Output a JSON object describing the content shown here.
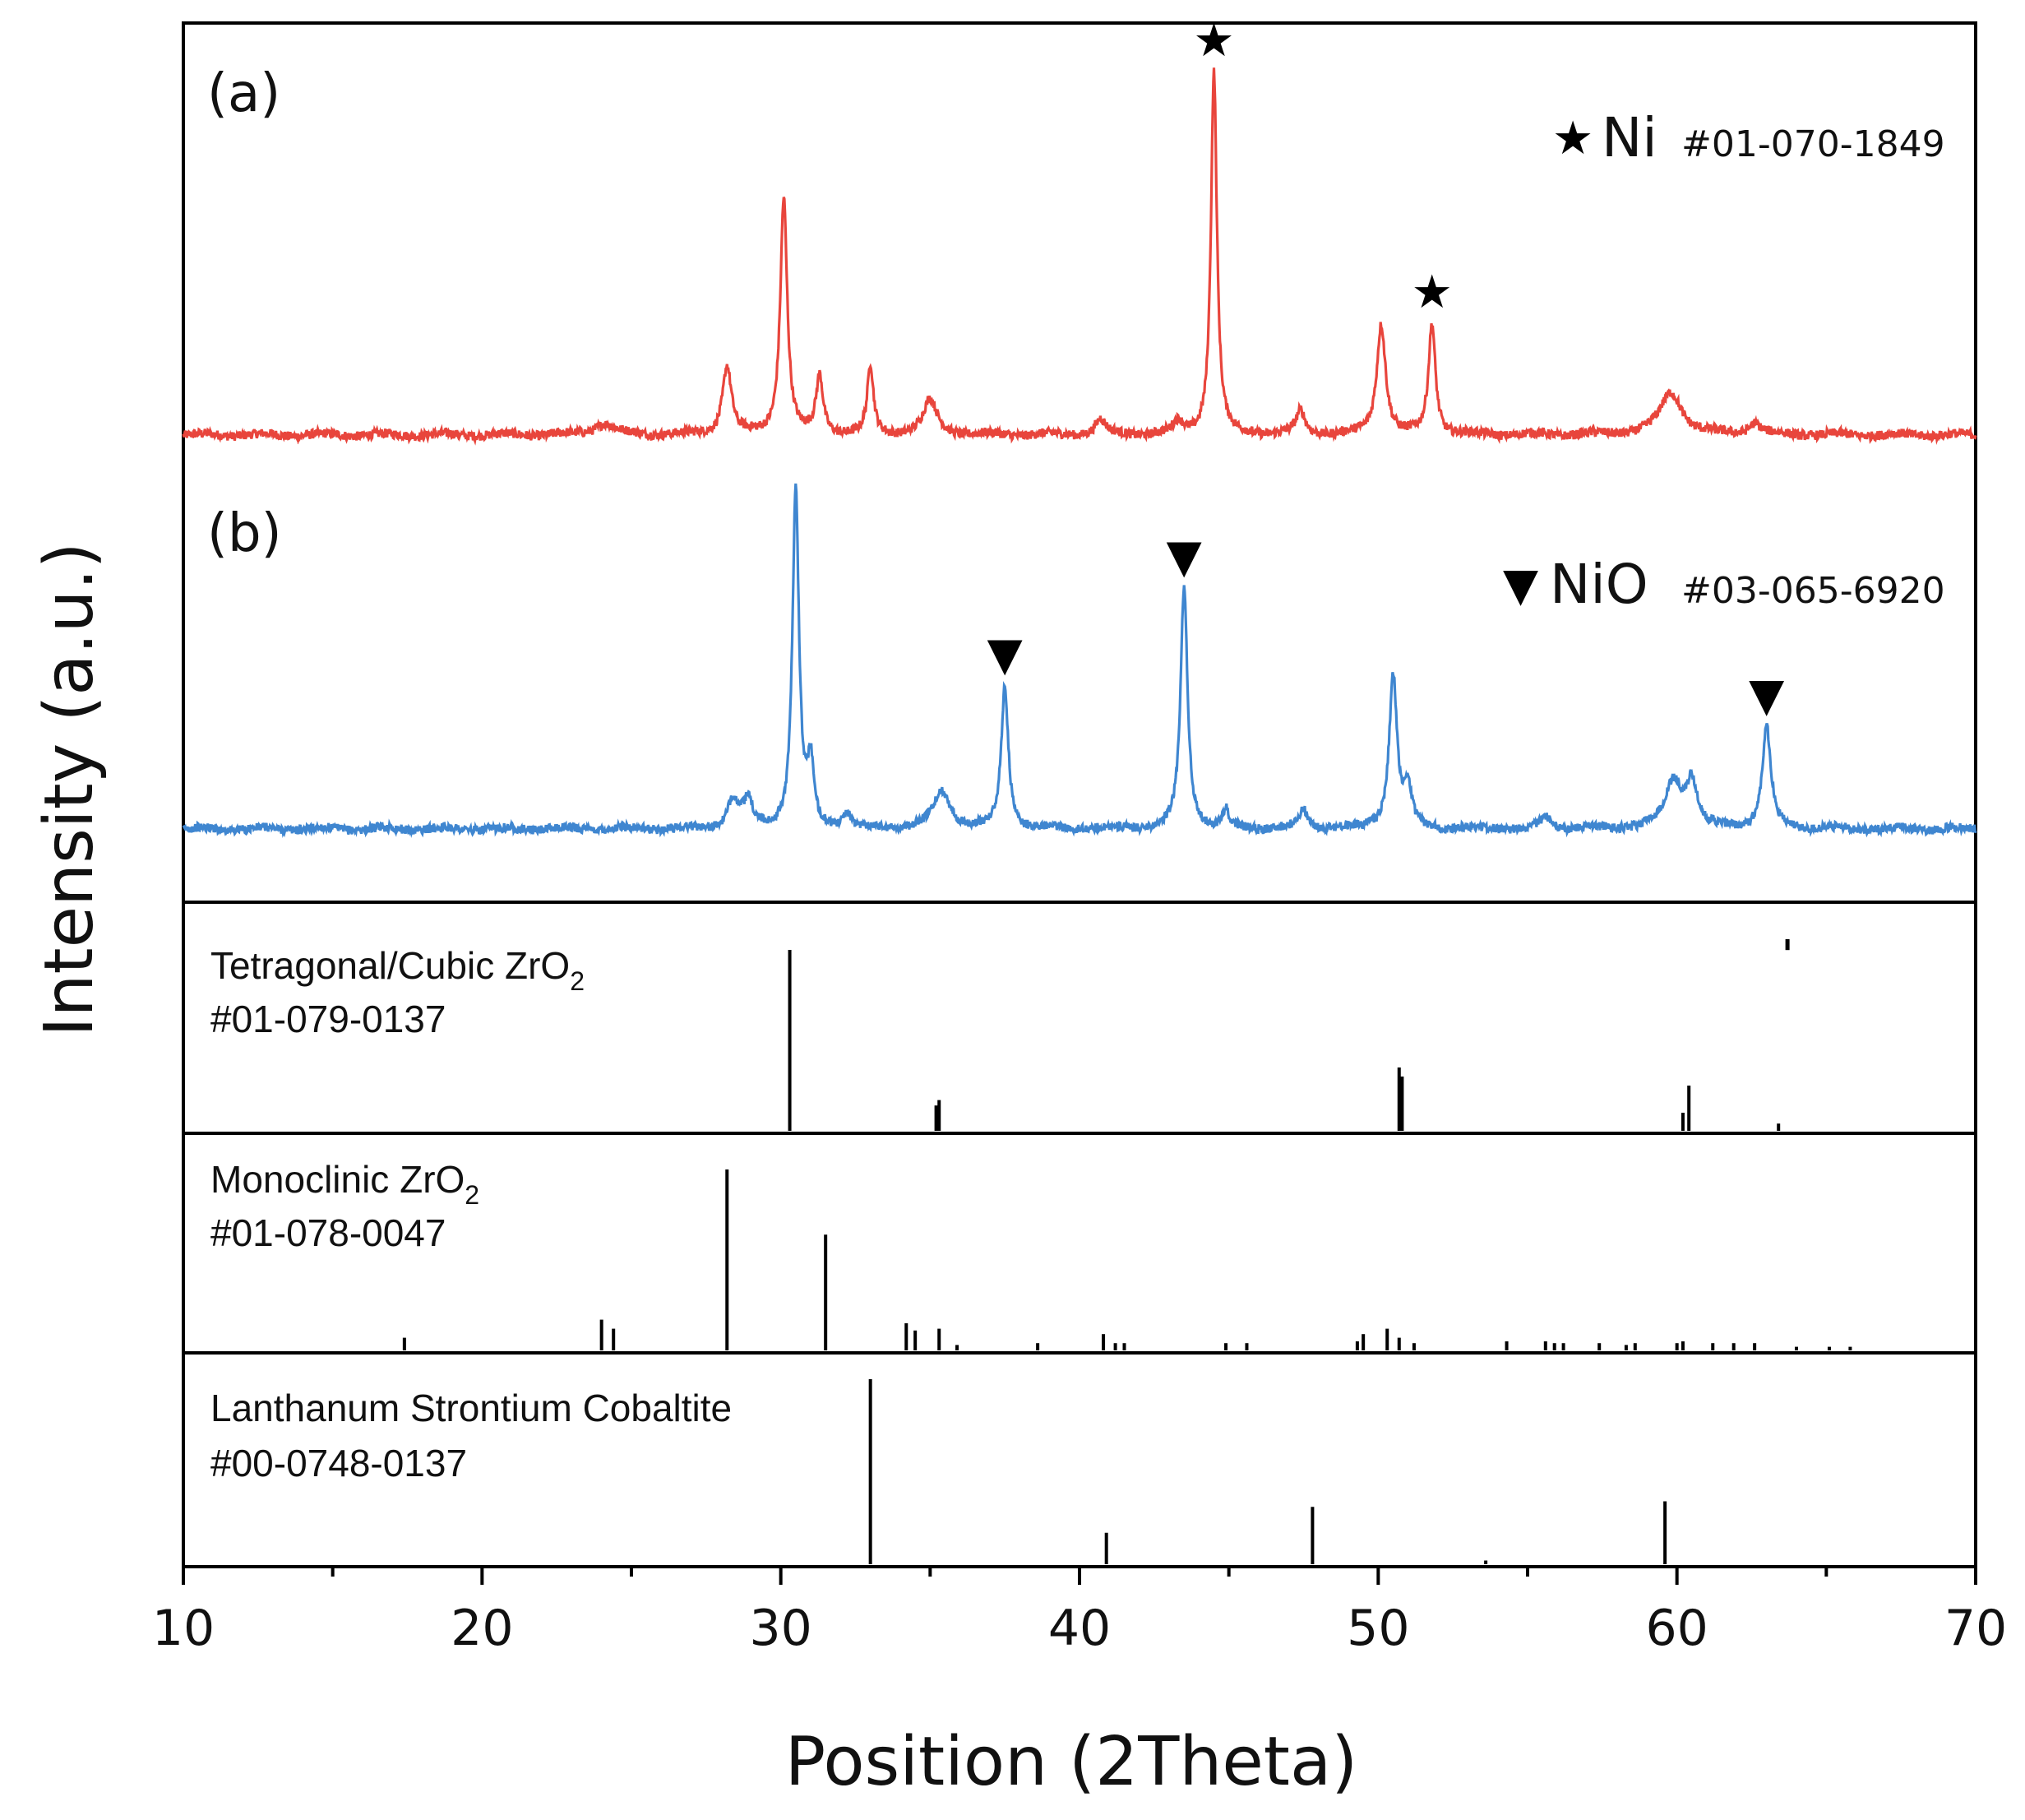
{
  "chart_data": {
    "type": "line",
    "xlabel": "Position (2Theta)",
    "ylabel": "Intensity (a.u.)",
    "xlim": [
      10,
      70
    ],
    "x_ticks": [
      10,
      20,
      30,
      40,
      50,
      60,
      70
    ],
    "x_tick_labels": [
      "10",
      "20",
      "30",
      "40",
      "50",
      "60",
      "70"
    ],
    "series": [
      {
        "name": "(a)",
        "color": "#e8453c",
        "baseline": 0.05,
        "noise": 0.012,
        "peaks": [
          {
            "x": 24.1,
            "h": 0.03,
            "w": 0.4
          },
          {
            "x": 28.2,
            "h": 0.18,
            "w": 0.18
          },
          {
            "x": 30.1,
            "h": 0.62,
            "w": 0.14
          },
          {
            "x": 31.3,
            "h": 0.15,
            "w": 0.14
          },
          {
            "x": 33.0,
            "h": 0.18,
            "w": 0.12
          },
          {
            "x": 35.0,
            "h": 0.09,
            "w": 0.28
          },
          {
            "x": 40.7,
            "h": 0.04,
            "w": 0.2
          },
          {
            "x": 43.3,
            "h": 0.03,
            "w": 0.2
          },
          {
            "x": 44.5,
            "h": 0.95,
            "w": 0.12
          },
          {
            "x": 47.4,
            "h": 0.06,
            "w": 0.18
          },
          {
            "x": 50.1,
            "h": 0.29,
            "w": 0.18
          },
          {
            "x": 51.8,
            "h": 0.29,
            "w": 0.14
          },
          {
            "x": 59.8,
            "h": 0.11,
            "w": 0.45
          },
          {
            "x": 62.6,
            "h": 0.03,
            "w": 0.25
          }
        ],
        "markers": [
          {
            "x": 44.5,
            "symbol": "★"
          },
          {
            "x": 51.8,
            "symbol": "★"
          }
        ],
        "label": "(a)",
        "legend": {
          "symbol": "★",
          "phase": "Ni",
          "card": "#01-070-1849"
        }
      },
      {
        "name": "(b)",
        "color": "#3f86d0",
        "baseline": 0.05,
        "noise": 0.012,
        "peaks": [
          {
            "x": 28.4,
            "h": 0.08,
            "w": 0.2
          },
          {
            "x": 28.9,
            "h": 0.07,
            "w": 0.2
          },
          {
            "x": 30.5,
            "h": 0.93,
            "w": 0.13
          },
          {
            "x": 31.0,
            "h": 0.17,
            "w": 0.12
          },
          {
            "x": 32.2,
            "h": 0.04,
            "w": 0.15
          },
          {
            "x": 35.4,
            "h": 0.1,
            "w": 0.35
          },
          {
            "x": 37.5,
            "h": 0.39,
            "w": 0.14
          },
          {
            "x": 43.5,
            "h": 0.66,
            "w": 0.14
          },
          {
            "x": 44.9,
            "h": 0.05,
            "w": 0.12
          },
          {
            "x": 47.5,
            "h": 0.05,
            "w": 0.18
          },
          {
            "x": 50.5,
            "h": 0.42,
            "w": 0.16
          },
          {
            "x": 51.0,
            "h": 0.1,
            "w": 0.15
          },
          {
            "x": 55.6,
            "h": 0.03,
            "w": 0.2
          },
          {
            "x": 59.9,
            "h": 0.13,
            "w": 0.35
          },
          {
            "x": 60.5,
            "h": 0.12,
            "w": 0.2
          },
          {
            "x": 63.0,
            "h": 0.28,
            "w": 0.17
          }
        ],
        "markers": [
          {
            "x": 37.5,
            "symbol": "▼"
          },
          {
            "x": 43.5,
            "symbol": "▼"
          },
          {
            "x": 63.0,
            "symbol": "▼"
          }
        ],
        "label": "(b)",
        "legend": {
          "symbol": "▼",
          "phase": "NiO",
          "card": "#03-065-6920"
        }
      }
    ],
    "reference_patterns": [
      {
        "name_main": "Tetragonal/Cubic ZrO",
        "name_sub": "2",
        "card": "#01-079-0137",
        "lines": [
          {
            "x": 30.3,
            "h": 1.0
          },
          {
            "x": 35.2,
            "h": 0.14
          },
          {
            "x": 35.3,
            "h": 0.17
          },
          {
            "x": 50.7,
            "h": 0.35
          },
          {
            "x": 50.8,
            "h": 0.3
          },
          {
            "x": 60.2,
            "h": 0.1
          },
          {
            "x": 60.4,
            "h": 0.25
          },
          {
            "x": 63.4,
            "h": 0.04
          },
          {
            "x": 63.7,
            "h": 0.06,
            "floating": true
          }
        ]
      },
      {
        "name_main": "Monoclinic ZrO",
        "name_sub": "2",
        "card": "#01-078-0047",
        "lines": [
          {
            "x": 17.4,
            "h": 0.07
          },
          {
            "x": 24.0,
            "h": 0.17
          },
          {
            "x": 24.4,
            "h": 0.12
          },
          {
            "x": 28.2,
            "h": 1.0
          },
          {
            "x": 31.5,
            "h": 0.64
          },
          {
            "x": 34.2,
            "h": 0.15
          },
          {
            "x": 34.5,
            "h": 0.11
          },
          {
            "x": 35.3,
            "h": 0.12
          },
          {
            "x": 35.9,
            "h": 0.03
          },
          {
            "x": 38.6,
            "h": 0.04
          },
          {
            "x": 40.8,
            "h": 0.09
          },
          {
            "x": 41.2,
            "h": 0.04
          },
          {
            "x": 41.5,
            "h": 0.04
          },
          {
            "x": 44.9,
            "h": 0.04
          },
          {
            "x": 45.6,
            "h": 0.04
          },
          {
            "x": 49.3,
            "h": 0.05
          },
          {
            "x": 49.5,
            "h": 0.09
          },
          {
            "x": 50.3,
            "h": 0.12
          },
          {
            "x": 50.7,
            "h": 0.07
          },
          {
            "x": 51.2,
            "h": 0.04
          },
          {
            "x": 54.3,
            "h": 0.05
          },
          {
            "x": 55.6,
            "h": 0.05
          },
          {
            "x": 55.9,
            "h": 0.04
          },
          {
            "x": 56.2,
            "h": 0.04
          },
          {
            "x": 57.4,
            "h": 0.04
          },
          {
            "x": 58.3,
            "h": 0.03
          },
          {
            "x": 58.6,
            "h": 0.04
          },
          {
            "x": 60.0,
            "h": 0.04
          },
          {
            "x": 60.2,
            "h": 0.05
          },
          {
            "x": 61.2,
            "h": 0.04
          },
          {
            "x": 61.9,
            "h": 0.04
          },
          {
            "x": 62.6,
            "h": 0.04
          },
          {
            "x": 64.0,
            "h": 0.02
          },
          {
            "x": 65.1,
            "h": 0.02
          },
          {
            "x": 65.8,
            "h": 0.02
          }
        ]
      },
      {
        "name_main": "Lanthanum Strontium Cobaltite",
        "name_sub": "",
        "card": "#00-0748-0137",
        "lines": [
          {
            "x": 33.0,
            "h": 1.0
          },
          {
            "x": 40.9,
            "h": 0.17
          },
          {
            "x": 47.8,
            "h": 0.31
          },
          {
            "x": 53.6,
            "h": 0.02
          },
          {
            "x": 59.6,
            "h": 0.34
          }
        ]
      }
    ]
  }
}
